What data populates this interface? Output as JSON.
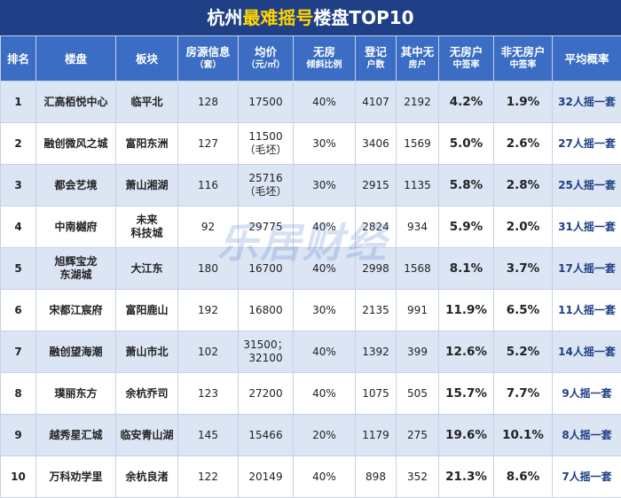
{
  "header": {
    "title": [
      "杭州",
      "最难摇号",
      "楼盘TOP10"
    ]
  },
  "table": {
    "columns": [
      [
        "排名"
      ],
      [
        "楼盘"
      ],
      [
        "板块"
      ],
      [
        "房源信息",
        "（套）"
      ],
      [
        "均价",
        "（元/㎡）"
      ],
      [
        "无房",
        "倾斜比例"
      ],
      [
        "登记",
        "户数"
      ],
      [
        "其中无",
        "房户"
      ],
      [
        "无房户",
        "中签率"
      ],
      [
        "非无房户",
        "中签率"
      ],
      [
        "平均概率"
      ]
    ],
    "rows": [
      [
        [
          "1"
        ],
        [
          "汇高栢悦中心"
        ],
        [
          "临平北"
        ],
        [
          "128"
        ],
        [
          "17500"
        ],
        [
          "40%"
        ],
        [
          "4107"
        ],
        [
          "2192"
        ],
        [
          "4.2%"
        ],
        [
          "1.9%"
        ],
        [
          "32人摇一套"
        ]
      ],
      [
        [
          "2"
        ],
        [
          "融创微风之城"
        ],
        [
          "富阳东洲"
        ],
        [
          "127"
        ],
        [
          "11500",
          "（毛坯）"
        ],
        [
          "30%"
        ],
        [
          "3406"
        ],
        [
          "1569"
        ],
        [
          "5.0%"
        ],
        [
          "2.6%"
        ],
        [
          "27人摇一套"
        ]
      ],
      [
        [
          "3"
        ],
        [
          "都会艺境"
        ],
        [
          "萧山湘湖"
        ],
        [
          "116"
        ],
        [
          "25716",
          "（毛坯）"
        ],
        [
          "30%"
        ],
        [
          "2915"
        ],
        [
          "1135"
        ],
        [
          "5.8%"
        ],
        [
          "2.8%"
        ],
        [
          "25人摇一套"
        ]
      ],
      [
        [
          "4"
        ],
        [
          "中南樾府"
        ],
        [
          "未来",
          "科技城"
        ],
        [
          "92"
        ],
        [
          "29775"
        ],
        [
          "40%"
        ],
        [
          "2824"
        ],
        [
          "934"
        ],
        [
          "5.9%"
        ],
        [
          "2.0%"
        ],
        [
          "31人摇一套"
        ]
      ],
      [
        [
          "5"
        ],
        [
          "旭辉宝龙",
          "东湖城"
        ],
        [
          "大江东"
        ],
        [
          "180"
        ],
        [
          "16700"
        ],
        [
          "40%"
        ],
        [
          "2998"
        ],
        [
          "1568"
        ],
        [
          "8.1%"
        ],
        [
          "3.7%"
        ],
        [
          "17人摇一套"
        ]
      ],
      [
        [
          "6"
        ],
        [
          "宋都江宸府"
        ],
        [
          "富阳鹿山"
        ],
        [
          "192"
        ],
        [
          "16800"
        ],
        [
          "30%"
        ],
        [
          "2135"
        ],
        [
          "991"
        ],
        [
          "11.9%"
        ],
        [
          "6.5%"
        ],
        [
          "11人摇一套"
        ]
      ],
      [
        [
          "7"
        ],
        [
          "融创望海潮"
        ],
        [
          "萧山市北"
        ],
        [
          "102"
        ],
        [
          "31500；",
          "32100"
        ],
        [
          "40%"
        ],
        [
          "1392"
        ],
        [
          "399"
        ],
        [
          "12.6%"
        ],
        [
          "5.2%"
        ],
        [
          "14人摇一套"
        ]
      ],
      [
        [
          "8"
        ],
        [
          "璞丽东方"
        ],
        [
          "余杭乔司"
        ],
        [
          "123"
        ],
        [
          "27200"
        ],
        [
          "40%"
        ],
        [
          "1075"
        ],
        [
          "505"
        ],
        [
          "15.7%"
        ],
        [
          "7.7%"
        ],
        [
          "9人摇一套"
        ]
      ],
      [
        [
          "9"
        ],
        [
          "越秀星汇城"
        ],
        [
          "临安青山湖"
        ],
        [
          "145"
        ],
        [
          "15466"
        ],
        [
          "20%"
        ],
        [
          "1179"
        ],
        [
          "275"
        ],
        [
          "19.6%"
        ],
        [
          "10.1%"
        ],
        [
          "8人摇一套"
        ]
      ],
      [
        [
          "10"
        ],
        [
          "万科劝学里"
        ],
        [
          "余杭良渚"
        ],
        [
          "122"
        ],
        [
          "20149"
        ],
        [
          "40%"
        ],
        [
          "898"
        ],
        [
          "352"
        ],
        [
          "21.3%"
        ],
        [
          "8.6%"
        ],
        [
          "7人摇一套"
        ]
      ]
    ]
  },
  "watermark": "乐居财经"
}
